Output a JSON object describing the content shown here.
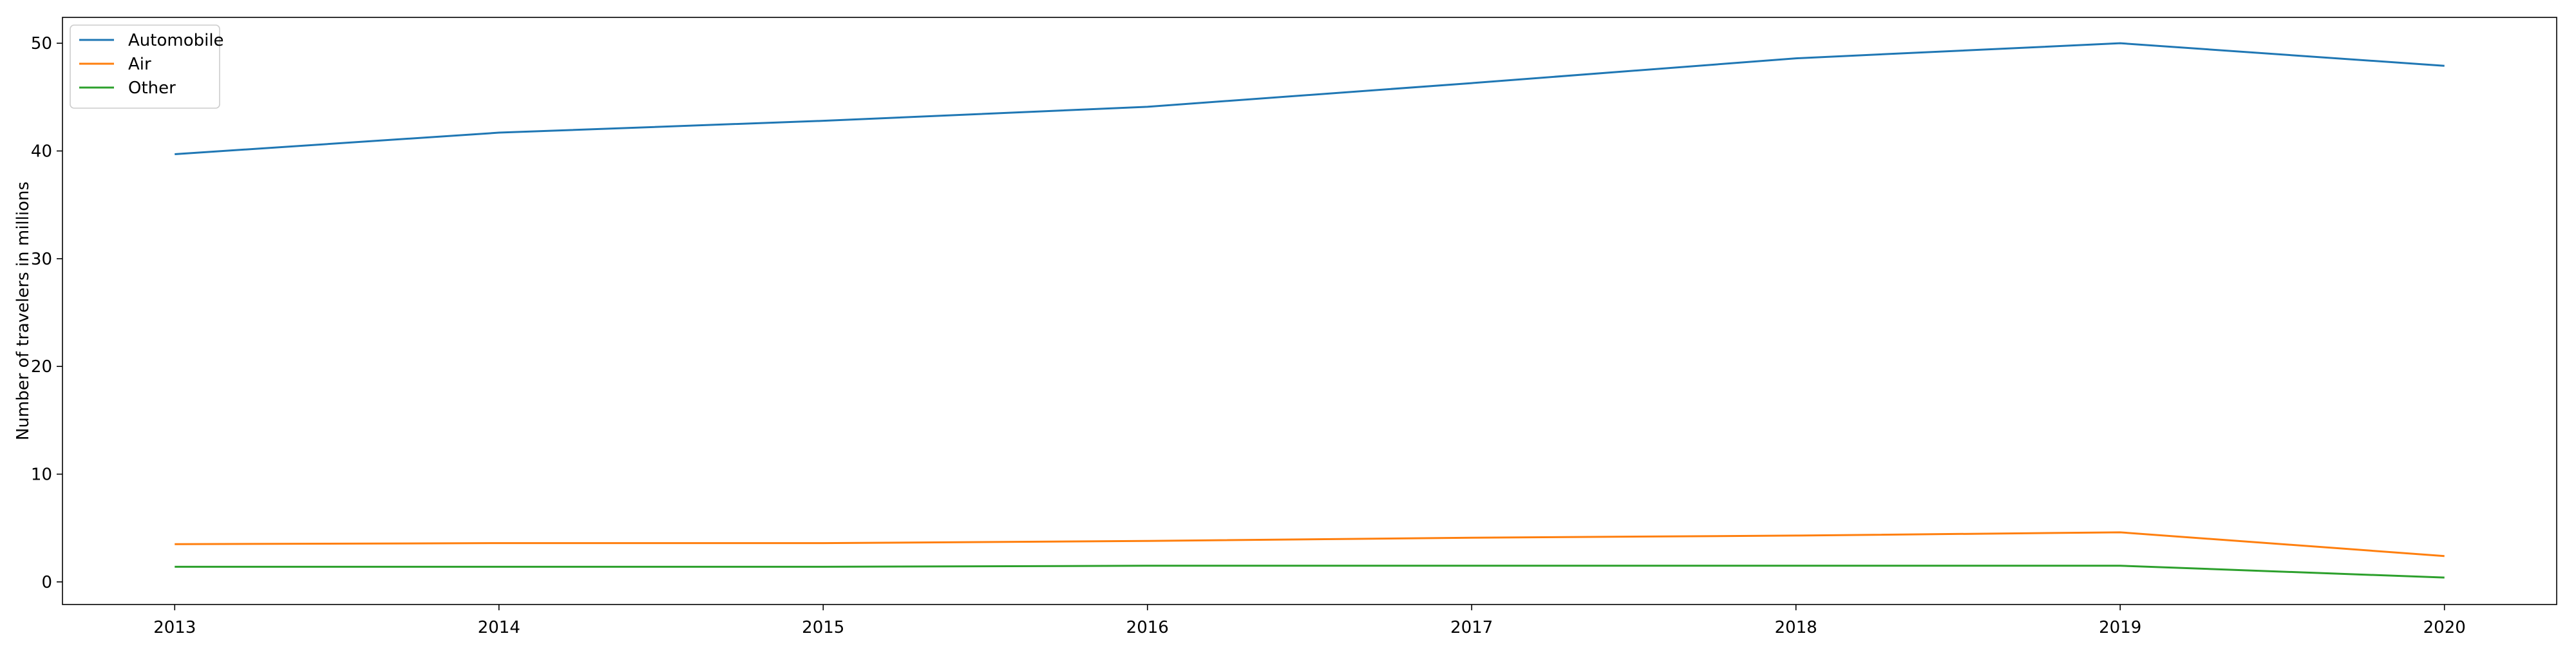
{
  "chart_data": {
    "type": "line",
    "title": "",
    "xlabel": "",
    "ylabel": "Number of travelers in millions",
    "categories": [
      "2013",
      "2014",
      "2015",
      "2016",
      "2017",
      "2018",
      "2019",
      "2020"
    ],
    "series": [
      {
        "name": "Automobile",
        "color": "#1f77b4",
        "values": [
          39.7,
          41.7,
          42.8,
          44.1,
          46.3,
          48.6,
          50.0,
          47.9
        ]
      },
      {
        "name": "Air",
        "color": "#ff7f0e",
        "values": [
          3.5,
          3.6,
          3.6,
          3.8,
          4.1,
          4.3,
          4.6,
          2.4
        ]
      },
      {
        "name": "Other",
        "color": "#2ca02c",
        "values": [
          1.4,
          1.4,
          1.4,
          1.5,
          1.5,
          1.5,
          1.5,
          0.4
        ]
      }
    ],
    "ylim": [
      -2.1,
      52.4
    ],
    "yticks": [
      "0",
      "10",
      "20",
      "30",
      "40",
      "50"
    ],
    "grid": false,
    "legend_position": "top-left"
  }
}
